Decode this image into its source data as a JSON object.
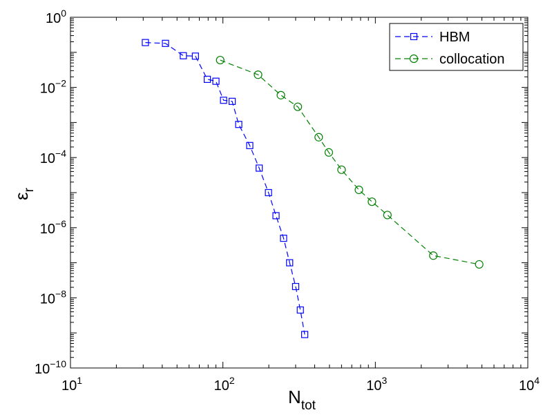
{
  "chart_data": {
    "type": "scatter",
    "x_scale": "log",
    "y_scale": "log",
    "xlim": [
      10,
      10000
    ],
    "ylim": [
      1e-10,
      1
    ],
    "x_tick_values": [
      10,
      100,
      1000,
      10000
    ],
    "y_tick_values": [
      1e-10,
      1e-08,
      1e-06,
      0.0001,
      0.01,
      1
    ],
    "x_tick_labels": [
      {
        "base": "10",
        "exp": "1"
      },
      {
        "base": "10",
        "exp": "2"
      },
      {
        "base": "10",
        "exp": "3"
      },
      {
        "base": "10",
        "exp": "4"
      }
    ],
    "y_tick_labels": [
      {
        "base": "10",
        "exp": "−10"
      },
      {
        "base": "10",
        "exp": "−8"
      },
      {
        "base": "10",
        "exp": "−6"
      },
      {
        "base": "10",
        "exp": "−4"
      },
      {
        "base": "10",
        "exp": "−2"
      },
      {
        "base": "10",
        "exp": "0"
      }
    ],
    "xlabel": {
      "main": "N",
      "sub": "tot"
    },
    "ylabel": {
      "main": "ε",
      "sub": "r"
    },
    "grid": false,
    "legend_position": "top-right",
    "series": [
      {
        "name": "HBM",
        "color": "#0000ff",
        "marker": "square",
        "line": "dashed",
        "x": [
          31,
          42,
          55,
          66,
          79,
          90,
          101,
          115,
          127,
          150,
          173,
          199,
          223,
          250,
          274,
          300,
          322,
          344
        ],
        "y": [
          0.19,
          0.18,
          0.08,
          0.078,
          0.017,
          0.015,
          0.0043,
          0.004,
          0.00088,
          0.00022,
          5e-05,
          1e-05,
          2.2e-06,
          5e-07,
          1e-07,
          2.1e-08,
          4.5e-09,
          9e-10
        ]
      },
      {
        "name": "collocation",
        "color": "#008000",
        "marker": "circle",
        "line": "dashed",
        "x": [
          96,
          170,
          240,
          310,
          425,
          495,
          600,
          780,
          950,
          1200,
          2400,
          4800
        ],
        "y": [
          0.06,
          0.023,
          0.006,
          0.0028,
          0.00038,
          0.00014,
          4.5e-05,
          1.2e-05,
          5.5e-06,
          2.3e-06,
          1.6e-07,
          9e-08
        ]
      }
    ]
  }
}
